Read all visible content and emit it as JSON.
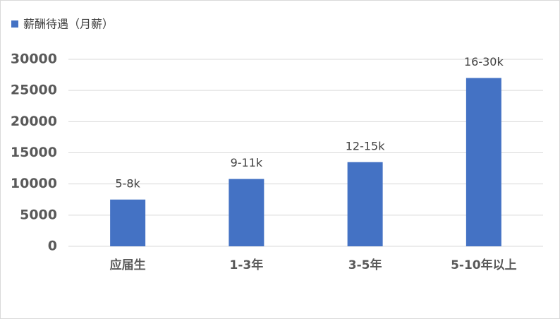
{
  "chart_data": {
    "type": "bar",
    "categories": [
      "应届生",
      "1-3年",
      "3-5年",
      "5-10年以上"
    ],
    "series": [
      {
        "name": "薪酬待遇（月薪）",
        "color": "#4472c4",
        "values": [
          7500,
          10800,
          13500,
          27000
        ]
      }
    ],
    "annotations": [
      "5-8k",
      "9-11k",
      "12-15k",
      "16-30k"
    ],
    "ylim": [
      0,
      30000
    ],
    "yticks": [
      0,
      5000,
      10000,
      15000,
      20000,
      25000,
      30000
    ],
    "grid": true,
    "legend": "top-left"
  }
}
